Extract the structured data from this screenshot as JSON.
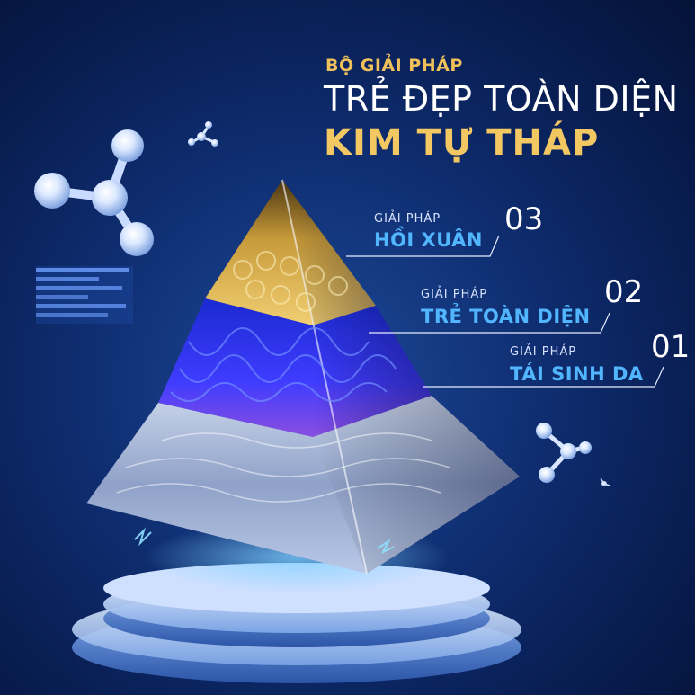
{
  "header": {
    "eyebrow": "BỘ GIẢI PHÁP",
    "headline": "TRẺ ĐẸP TOÀN DIỆN",
    "title": "KIM TỰ THÁP"
  },
  "levels": [
    {
      "prefix": "GIẢI PHÁP",
      "name": "HỒI XUÂN",
      "number": "03"
    },
    {
      "prefix": "GIẢI PHÁP",
      "name": "TRẺ TOÀN DIỆN",
      "number": "02"
    },
    {
      "prefix": "GIẢI PHÁP",
      "name": "TÁI SINH DA",
      "number": "01"
    }
  ],
  "colors": {
    "background": "#0e2c6e",
    "gold": "#f3c862",
    "accent_blue": "#52b6ff",
    "white": "#ffffff"
  },
  "icons": [
    "molecule-icon-large",
    "molecule-icon-small",
    "molecule-icon-right",
    "bar-stripes-decoration",
    "pyramid-illustration",
    "pedestal"
  ]
}
